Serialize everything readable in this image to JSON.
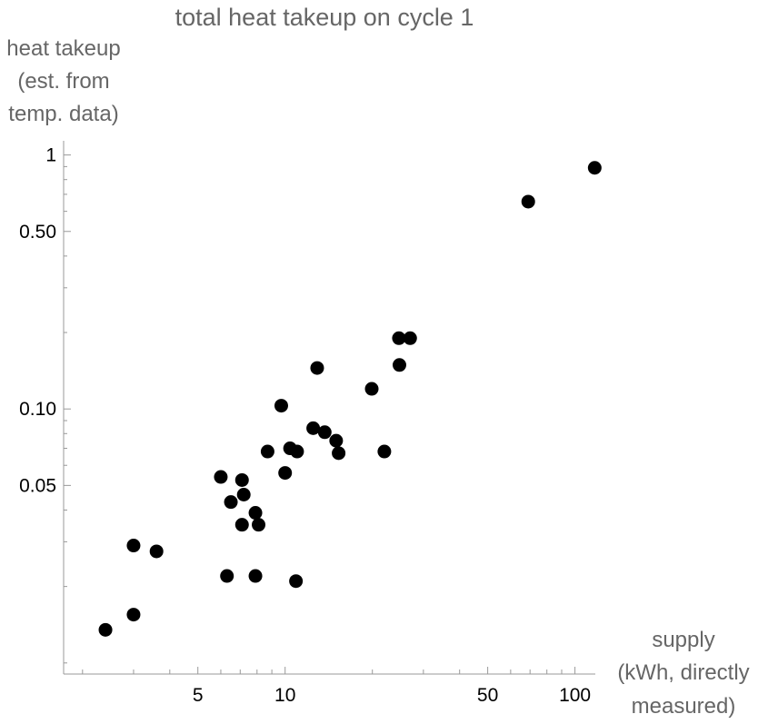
{
  "chart_data": {
    "type": "scatter",
    "title": "total heat takeup on cycle 1",
    "ylabel_lines": [
      "heat takeup",
      "(est. from",
      "temp. data)"
    ],
    "xlabel_lines": [
      "supply",
      "(kWh, directly",
      "measured)"
    ],
    "x_scale": "log",
    "y_scale": "log",
    "xlim": [
      1.6,
      120
    ],
    "ylim": [
      0.01,
      1.1
    ],
    "grid": false,
    "x_ticks": [
      {
        "value": 5,
        "label": "5"
      },
      {
        "value": 10,
        "label": "10"
      },
      {
        "value": 50,
        "label": "50"
      },
      {
        "value": 100,
        "label": "100"
      }
    ],
    "y_ticks": [
      {
        "value": 0.05,
        "label": "0.05"
      },
      {
        "value": 0.1,
        "label": "0.10"
      },
      {
        "value": 0.5,
        "label": "0.50"
      },
      {
        "value": 1,
        "label": "1"
      }
    ],
    "points": [
      {
        "x": 2.4,
        "y": 0.0135
      },
      {
        "x": 3.0,
        "y": 0.0155
      },
      {
        "x": 3.0,
        "y": 0.029
      },
      {
        "x": 3.6,
        "y": 0.0275
      },
      {
        "x": 6.0,
        "y": 0.054
      },
      {
        "x": 6.3,
        "y": 0.022
      },
      {
        "x": 6.5,
        "y": 0.043
      },
      {
        "x": 7.1,
        "y": 0.035
      },
      {
        "x": 7.2,
        "y": 0.046
      },
      {
        "x": 7.1,
        "y": 0.0525
      },
      {
        "x": 7.9,
        "y": 0.022
      },
      {
        "x": 7.9,
        "y": 0.039
      },
      {
        "x": 8.1,
        "y": 0.035
      },
      {
        "x": 8.7,
        "y": 0.068
      },
      {
        "x": 9.7,
        "y": 0.103
      },
      {
        "x": 10.0,
        "y": 0.056
      },
      {
        "x": 10.4,
        "y": 0.07
      },
      {
        "x": 11.0,
        "y": 0.068
      },
      {
        "x": 10.9,
        "y": 0.021
      },
      {
        "x": 12.5,
        "y": 0.084
      },
      {
        "x": 13.7,
        "y": 0.081
      },
      {
        "x": 15.0,
        "y": 0.075
      },
      {
        "x": 15.3,
        "y": 0.067
      },
      {
        "x": 12.9,
        "y": 0.145
      },
      {
        "x": 19.9,
        "y": 0.12
      },
      {
        "x": 22.0,
        "y": 0.068
      },
      {
        "x": 24.7,
        "y": 0.19
      },
      {
        "x": 27.0,
        "y": 0.19
      },
      {
        "x": 24.8,
        "y": 0.149
      },
      {
        "x": 69.0,
        "y": 0.655
      },
      {
        "x": 117.0,
        "y": 0.89
      }
    ]
  }
}
